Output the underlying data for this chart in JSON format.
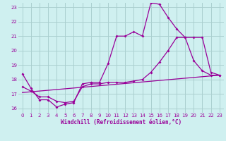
{
  "xlabel": "Windchill (Refroidissement éolien,°C)",
  "xlim": [
    -0.5,
    23.5
  ],
  "ylim": [
    15.7,
    23.3
  ],
  "yticks": [
    16,
    17,
    18,
    19,
    20,
    21,
    22,
    23
  ],
  "xticks": [
    0,
    1,
    2,
    3,
    4,
    5,
    6,
    7,
    8,
    9,
    10,
    11,
    12,
    13,
    14,
    15,
    16,
    17,
    18,
    19,
    20,
    21,
    22,
    23
  ],
  "bg_color": "#cff0f0",
  "grid_color": "#aacfcf",
  "line_color": "#990099",
  "line1_x": [
    0,
    1,
    2,
    3,
    4,
    5,
    6,
    7,
    8,
    9,
    10,
    11,
    12,
    13,
    14,
    15,
    16,
    17,
    18,
    19,
    20,
    21,
    22,
    23
  ],
  "line1_y": [
    18.4,
    17.4,
    16.6,
    16.6,
    16.1,
    16.3,
    16.4,
    17.7,
    17.8,
    17.8,
    19.1,
    21.0,
    21.0,
    21.3,
    21.0,
    23.3,
    23.2,
    22.3,
    21.5,
    20.9,
    19.3,
    18.6,
    18.3,
    18.3
  ],
  "line2_x": [
    0,
    1,
    2,
    3,
    4,
    5,
    6,
    7,
    8,
    9,
    10,
    11,
    12,
    13,
    14,
    15,
    16,
    17,
    18,
    19,
    20,
    21,
    22,
    23
  ],
  "line2_y": [
    17.5,
    17.2,
    16.8,
    16.8,
    16.5,
    16.4,
    16.5,
    17.5,
    17.7,
    17.7,
    17.8,
    17.8,
    17.8,
    17.9,
    18.0,
    18.5,
    19.2,
    20.0,
    20.9,
    20.9,
    20.9,
    20.9,
    18.5,
    18.3
  ],
  "line3_x": [
    0,
    23
  ],
  "line3_y": [
    17.1,
    18.3
  ]
}
